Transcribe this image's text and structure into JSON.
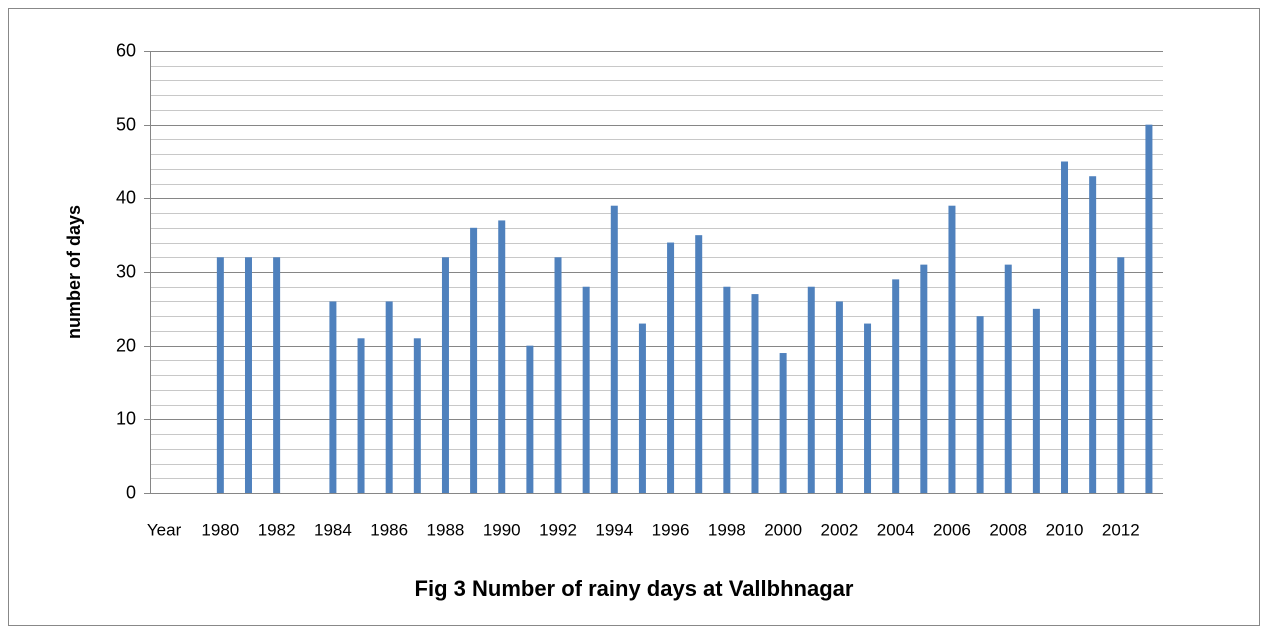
{
  "chart_data": {
    "type": "bar",
    "title": "Fig 3 Number of rainy days at Vallbhnagar",
    "y_label": "number of days",
    "categories": [
      "Year",
      null,
      "1980",
      null,
      "1982",
      null,
      "1984",
      null,
      "1986",
      null,
      "1988",
      null,
      "1990",
      null,
      "1992",
      null,
      "1994",
      null,
      "1996",
      null,
      "1998",
      null,
      "2000",
      null,
      "2002",
      null,
      "2004",
      null,
      "2006",
      null,
      "2008",
      null,
      "2010",
      null,
      "2012",
      null
    ],
    "values": [
      null,
      null,
      32,
      32,
      32,
      null,
      26,
      21,
      26,
      21,
      32,
      36,
      37,
      20,
      32,
      28,
      39,
      23,
      34,
      35,
      28,
      27,
      19,
      28,
      26,
      23,
      29,
      31,
      39,
      24,
      31,
      25,
      45,
      43,
      32,
      50
    ],
    "color": "#4f81bd",
    "ylim": [
      0,
      60
    ],
    "yticks": [
      0,
      10,
      20,
      30,
      40,
      50,
      60
    ],
    "minor_yticks": [
      2,
      4,
      6,
      8,
      12,
      14,
      16,
      18,
      22,
      24,
      26,
      28,
      32,
      34,
      36,
      38,
      42,
      44,
      46,
      48,
      52,
      54,
      56,
      58
    ],
    "grid": true
  }
}
